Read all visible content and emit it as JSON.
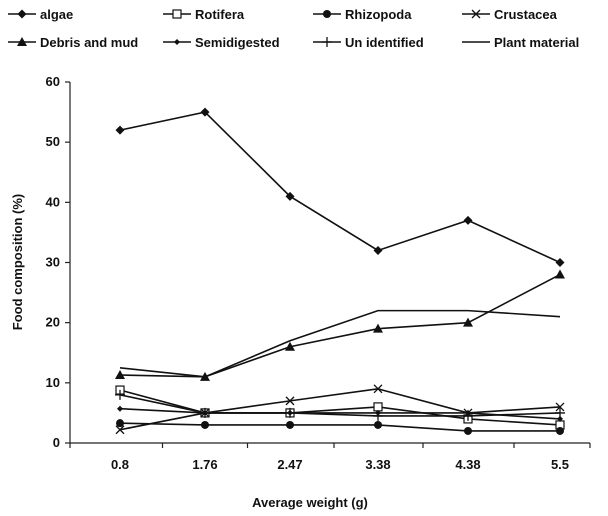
{
  "chart_data": {
    "type": "line",
    "xlabel": "Average weight (g)",
    "ylabel": "Food composition (%)",
    "categories": [
      "0.8",
      "1.76",
      "2.47",
      "3.38",
      "4.38",
      "5.5"
    ],
    "ylim": [
      0,
      60
    ],
    "yticks": [
      0,
      10,
      20,
      30,
      40,
      50,
      60
    ],
    "grid": false,
    "legend_position": "top",
    "series": [
      {
        "name": "algae",
        "marker": "diamond",
        "values": [
          52,
          55,
          41,
          32,
          37,
          30
        ]
      },
      {
        "name": "Rotifera",
        "marker": "open-square",
        "values": [
          8.8,
          5,
          5,
          6,
          4,
          3
        ]
      },
      {
        "name": "Rhizopoda",
        "marker": "filled-circle",
        "values": [
          3.3,
          3,
          3,
          3,
          2,
          2
        ]
      },
      {
        "name": "Crustacea",
        "marker": "x",
        "values": [
          2.2,
          5,
          7,
          9,
          5,
          6
        ]
      },
      {
        "name": "Debris and mud",
        "marker": "triangle",
        "values": [
          11.3,
          11,
          16,
          19,
          20,
          28
        ]
      },
      {
        "name": "Semidigested",
        "marker": "small-diamond",
        "values": [
          5.7,
          5,
          5,
          5,
          5,
          4
        ]
      },
      {
        "name": "Un identified",
        "marker": "plus",
        "values": [
          8,
          5,
          5,
          4.5,
          4.5,
          5
        ]
      },
      {
        "name": "Plant material",
        "marker": "none",
        "values": [
          12.5,
          11,
          17,
          22,
          22,
          21
        ]
      }
    ],
    "line_color": "#111111"
  }
}
